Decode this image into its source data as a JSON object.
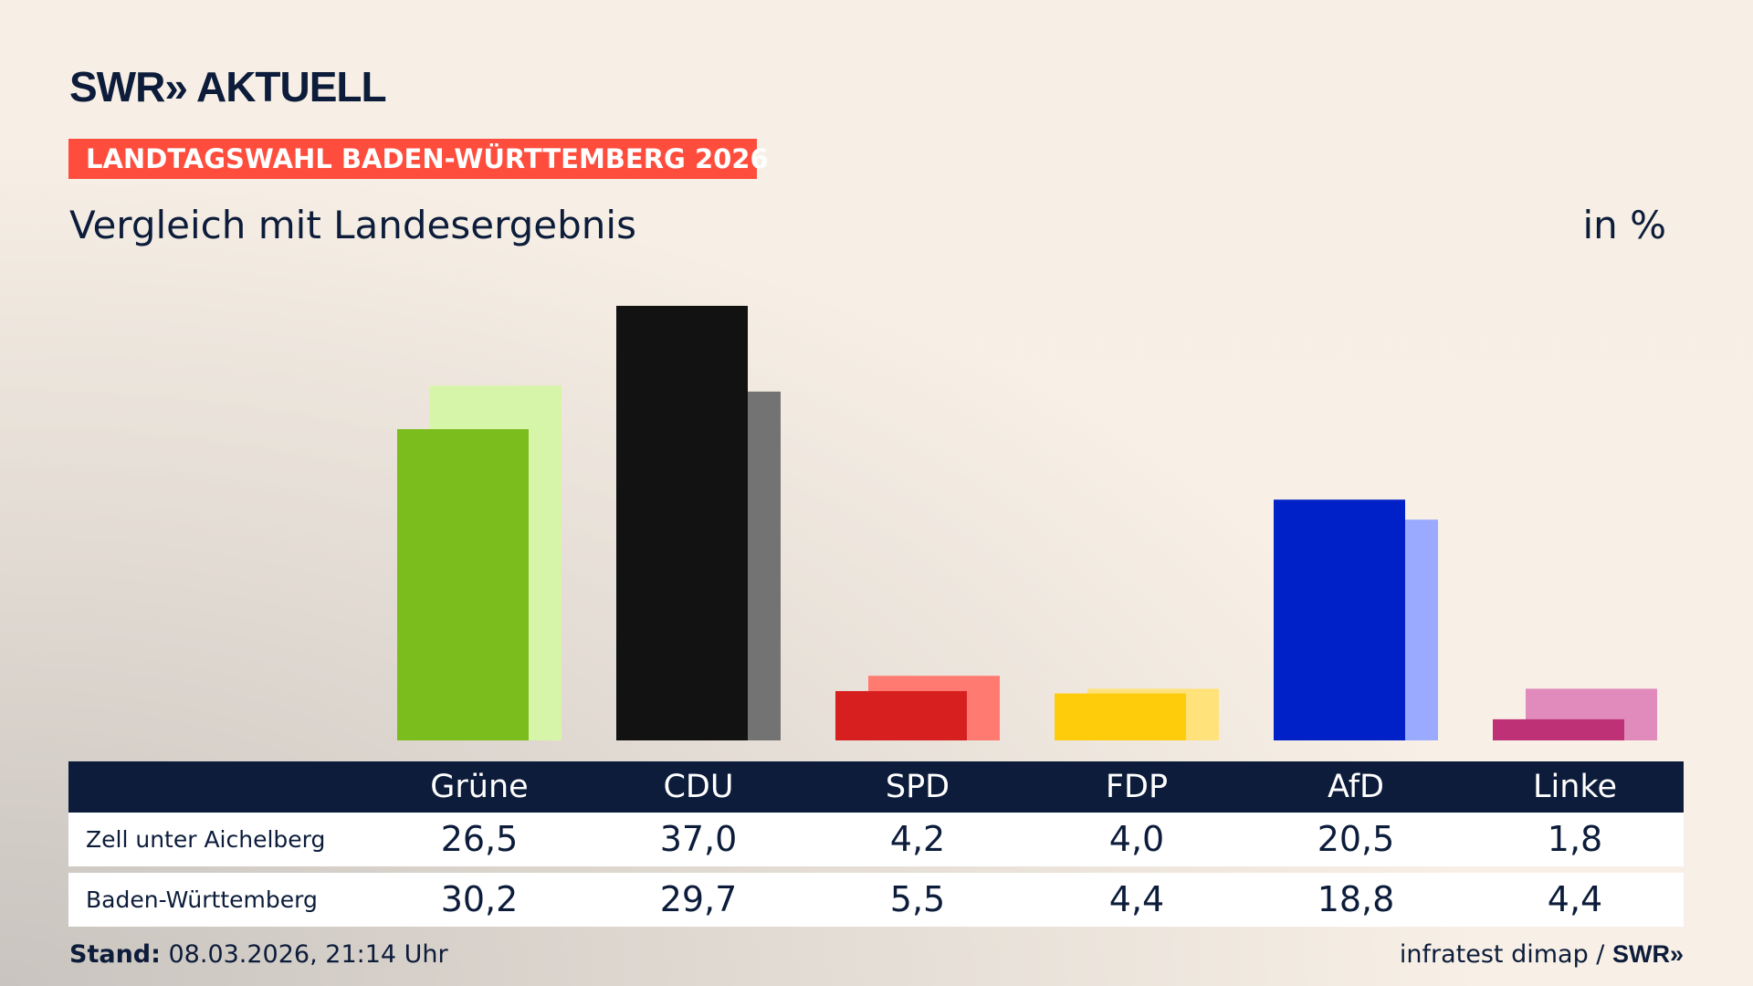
{
  "header": {
    "logo": "SWR» AKTUELL",
    "badge": "LANDTAGSWAHL BADEN-WÜRTTEMBERG 2026",
    "subtitle": "Vergleich mit Landesergebnis",
    "unit": "in %"
  },
  "chart_data": {
    "type": "bar",
    "categories": [
      "Grüne",
      "CDU",
      "SPD",
      "FDP",
      "AfD",
      "Linke"
    ],
    "series": [
      {
        "name": "Zell unter Aichelberg",
        "values": [
          26.5,
          37.0,
          4.2,
          4.0,
          20.5,
          1.8
        ],
        "labels": [
          "26,5",
          "37,0",
          "4,2",
          "4,0",
          "20,5",
          "1,8"
        ]
      },
      {
        "name": "Baden-Württemberg",
        "values": [
          30.2,
          29.7,
          5.5,
          4.4,
          18.8,
          4.4
        ],
        "labels": [
          "30,2",
          "29,7",
          "5,5",
          "4,4",
          "18,8",
          "4,4"
        ]
      }
    ],
    "colors": {
      "primary": [
        "#7abd1c",
        "#121212",
        "#d81f1f",
        "#ffcc0c",
        "#0020c8",
        "#bf3176"
      ],
      "secondary": [
        "#d6f5a8",
        "#737373",
        "#ff7a70",
        "#ffe27a",
        "#9aaaff",
        "#e08bbb"
      ]
    },
    "ylim": [
      0,
      37
    ],
    "grid": false
  },
  "footer": {
    "stand_label": "Stand:",
    "stand_value": " 08.03.2026, 21:14 Uhr",
    "source": "infratest dimap / ",
    "source_logo": "SWR»"
  }
}
